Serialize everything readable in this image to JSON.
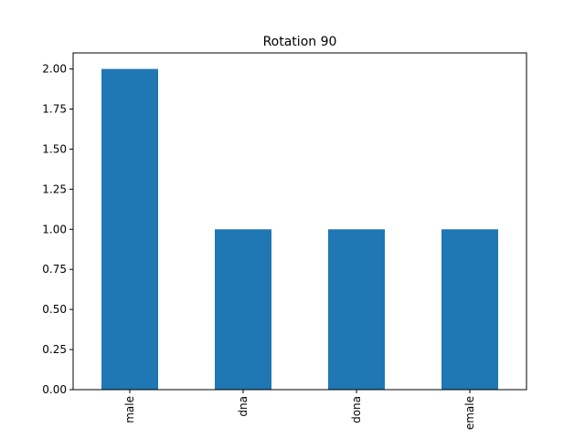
{
  "chart_data": {
    "type": "bar",
    "title": "Rotation 90",
    "categories": [
      "male",
      "dna",
      "dona",
      "emale"
    ],
    "values": [
      2,
      1,
      1,
      1
    ],
    "color": "#1f77b4",
    "ylim": [
      0,
      2.1
    ],
    "yticks": [
      {
        "value": 0,
        "label": "0.00"
      },
      {
        "value": 0.25,
        "label": "0.25"
      },
      {
        "value": 0.5,
        "label": "0.50"
      },
      {
        "value": 0.75,
        "label": "0.75"
      },
      {
        "value": 1,
        "label": "1.00"
      },
      {
        "value": 1.25,
        "label": "1.25"
      },
      {
        "value": 1.5,
        "label": "1.50"
      },
      {
        "value": 1.75,
        "label": "1.75"
      },
      {
        "value": 2,
        "label": "2.00"
      }
    ],
    "grid": false
  }
}
